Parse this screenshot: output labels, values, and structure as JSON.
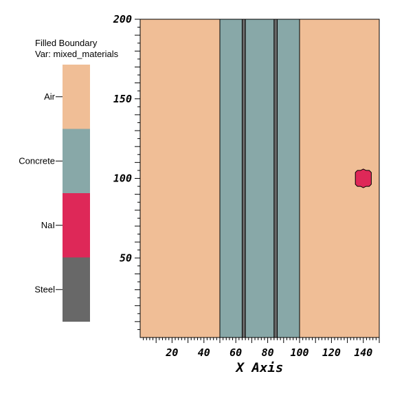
{
  "chart_data": {
    "type": "heatmap",
    "legend": {
      "title": "Filled Boundary",
      "variable": "Var: mixed_materials",
      "entries": [
        {
          "label": "Air",
          "color": "#f0be96"
        },
        {
          "label": "Concrete",
          "color": "#88a8a8"
        },
        {
          "label": "NaI",
          "color": "#de2858"
        },
        {
          "label": "Steel",
          "color": "#686868"
        }
      ]
    },
    "xlabel": "X Axis",
    "xlim": [
      0,
      150
    ],
    "ylim": [
      0,
      200
    ],
    "x_ticks": [
      20,
      40,
      60,
      80,
      100,
      120,
      140
    ],
    "y_ticks": [
      50,
      100,
      150,
      200
    ],
    "grid": false,
    "regions": [
      {
        "material": "Air",
        "x0": 0,
        "x1": 50,
        "y0": 0,
        "y1": 200
      },
      {
        "material": "Concrete",
        "x0": 50,
        "x1": 64,
        "y0": 0,
        "y1": 200
      },
      {
        "material": "Steel",
        "x0": 64,
        "x1": 66,
        "y0": 0,
        "y1": 200
      },
      {
        "material": "Concrete",
        "x0": 66,
        "x1": 84,
        "y0": 0,
        "y1": 200
      },
      {
        "material": "Steel",
        "x0": 84,
        "x1": 86,
        "y0": 0,
        "y1": 200
      },
      {
        "material": "Concrete",
        "x0": 86,
        "x1": 100,
        "y0": 0,
        "y1": 200
      },
      {
        "material": "Air",
        "x0": 100,
        "x1": 150,
        "y0": 0,
        "y1": 200
      }
    ],
    "detector": {
      "material": "NaI",
      "x_center": 140,
      "y_center": 100,
      "width": 10,
      "height": 10
    }
  }
}
